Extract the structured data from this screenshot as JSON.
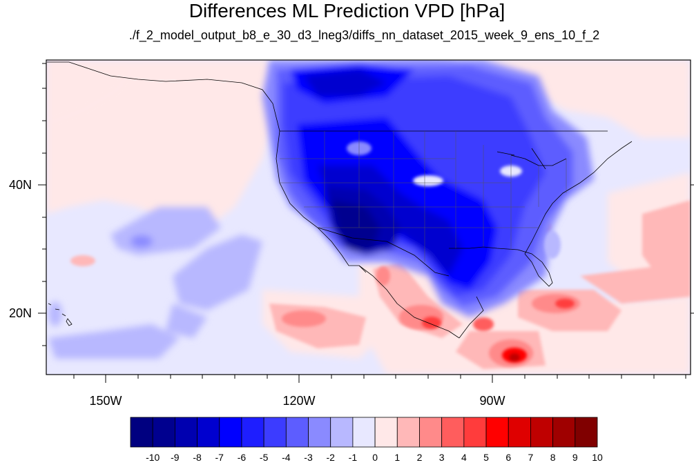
{
  "title": "Differences ML Prediction VPD [hPa]",
  "subtitle": "./f_2_model_output_b8_e_30_d3_lneg3/diffs_nn_dataset_2015_week_9_ens_10_f_2",
  "map": {
    "lat_labels": [
      {
        "text": "40N",
        "lat": 40
      },
      {
        "text": "20N",
        "lat": 20
      }
    ],
    "lon_labels": [
      {
        "text": "150W",
        "lon": -150
      },
      {
        "text": "120W",
        "lon": -120
      },
      {
        "text": "90W",
        "lon": -90
      }
    ],
    "extent": {
      "lon_min": -159.5,
      "lon_max": -60,
      "lat_min": 10.5,
      "lat_max": 59.5
    }
  },
  "colorbar": {
    "labels": [
      "-10",
      "-9",
      "-8",
      "-7",
      "-6",
      "-5",
      "-4",
      "-3",
      "-2",
      "-1",
      "0",
      "1",
      "2",
      "3",
      "4",
      "5",
      "6",
      "7",
      "8",
      "9",
      "10"
    ],
    "colors": [
      "#000080",
      "#00008f",
      "#0000b0",
      "#0000cf",
      "#0000ff",
      "#1e1eff",
      "#3c3cff",
      "#5d5dff",
      "#8a8aff",
      "#b8b8ff",
      "#e8e8ff",
      "#ffe8e8",
      "#ffb8b8",
      "#ff8a8a",
      "#ff5d5d",
      "#ff3c3c",
      "#ff0000",
      "#df0000",
      "#bf0000",
      "#9f0000",
      "#800000"
    ]
  }
}
